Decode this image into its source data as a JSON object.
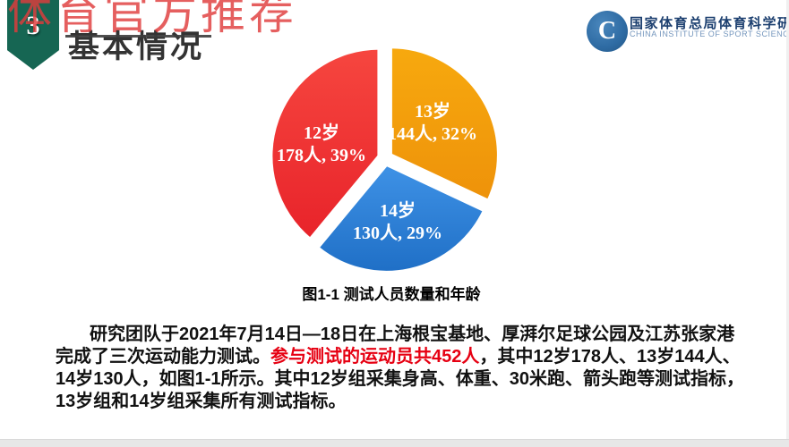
{
  "watermark": {
    "text": "体育官方推荐"
  },
  "badge": {
    "number": "3"
  },
  "header": {
    "title": "基本情况"
  },
  "logo": {
    "letter": "C",
    "name_cn": "国家体育总局体育科学研究所",
    "name_en": "CHINA INSTITUTE OF SPORT SCIENCE"
  },
  "chart_data": {
    "type": "pie",
    "title": "图1-1 测试人员数量和年龄",
    "direction": "clockwise",
    "start_angle_deg": 0,
    "label_color": "#ffffff",
    "slices": [
      {
        "label": "13岁",
        "people": 144,
        "percent": 32,
        "value_text": "144人, 32%",
        "color_light": "#f7a90e",
        "color": "#ee920a"
      },
      {
        "label": "14岁",
        "people": 130,
        "percent": 29,
        "value_text": "130人, 29%",
        "color_light": "#3f92e6",
        "color": "#1f6fc6"
      },
      {
        "label": "12岁",
        "people": 178,
        "percent": 39,
        "value_text": "178人, 39%",
        "color_light": "#f6463f",
        "color": "#e8232a"
      }
    ]
  },
  "paragraph": {
    "line1": "研究团队于2021年7月14日—18日在上海根宝基地、厚湃尔足球公园及江苏张家港",
    "line2_black1": "完成了三次运动能力测试。",
    "line2_red": "参与测试的运动员共452人",
    "line2_black2": "，其中12岁178人、13岁144人、",
    "line3": "14岁130人，如图1-1所示。其中12岁组采集身高、体重、30米跑、箭头跑等测试指标，",
    "line4": "13岁组和14岁组采集所有测试指标。"
  },
  "colors": {
    "watermark_red": "#e03c3c",
    "badge_green": "#166653",
    "title_gray": "#333333",
    "highlight_red": "#e60012",
    "logo_blue": "#2e6ba3",
    "logo_text_blue": "#1d4070"
  }
}
